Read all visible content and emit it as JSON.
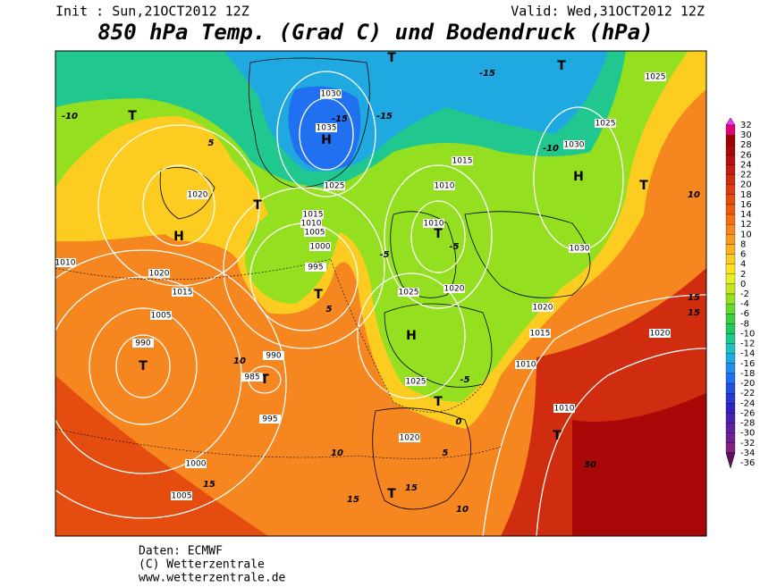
{
  "header": {
    "init": "Init : Sun,21OCT2012 12Z",
    "valid": "Valid: Wed,31OCT2012 12Z",
    "title": "850 hPa Temp. (Grad C) und Bodendruck (hPa)"
  },
  "footer": {
    "source": "Daten: ECMWF",
    "copyright": "(C) Wetterzentrale",
    "url": "www.wetterzentrale.de"
  },
  "colorbar": {
    "levels": [
      32,
      30,
      28,
      26,
      24,
      22,
      20,
      18,
      16,
      14,
      12,
      10,
      8,
      6,
      4,
      2,
      0,
      -2,
      -4,
      -6,
      -8,
      -10,
      -12,
      -14,
      -16,
      -18,
      -20,
      -22,
      -24,
      -26,
      -28,
      -30,
      -32,
      -34,
      -36
    ],
    "colors": [
      "#ff33ff",
      "#e0007a",
      "#9a0000",
      "#a80808",
      "#b81010",
      "#c41c10",
      "#d02c10",
      "#dc3c10",
      "#e44c10",
      "#ec5c10",
      "#f27010",
      "#f68620",
      "#f89c20",
      "#fab420",
      "#fccc20",
      "#fde420",
      "#e4f020",
      "#c0e820",
      "#94e020",
      "#66d830",
      "#38d040",
      "#20c860",
      "#20c890",
      "#20c0c0",
      "#20a8e0",
      "#2090f0",
      "#2070f0",
      "#2050e0",
      "#2838d0",
      "#3420c0",
      "#4c20b0",
      "#6020a0",
      "#702090",
      "#802080",
      "#601060"
    ]
  },
  "pressure_labels": [
    "H",
    "H",
    "H",
    "H",
    "T",
    "T",
    "T",
    "T",
    "T",
    "T",
    "T",
    "T",
    "T",
    "T",
    "T",
    "T"
  ],
  "isobar_labels": [
    "1020",
    "1030",
    "1035",
    "1025",
    "1015",
    "1010",
    "1005",
    "1000",
    "995",
    "990",
    "985",
    "990",
    "995",
    "1000",
    "1005",
    "1010",
    "1015",
    "1020",
    "1025",
    "1020",
    "1010",
    "1015",
    "1020",
    "1030",
    "1025",
    "1025",
    "1030",
    "1015",
    "1010",
    "1020",
    "1025",
    "1020",
    "1015",
    "1010",
    "1005",
    "1010"
  ],
  "isotherm_labels": [
    "-15",
    "-15",
    "-15",
    "-10",
    "-10",
    "-5",
    "-5",
    "0",
    "5",
    "5",
    "10",
    "10",
    "15",
    "15",
    "15",
    "10",
    "15",
    "15",
    "30",
    "10",
    "-5",
    "5"
  ]
}
